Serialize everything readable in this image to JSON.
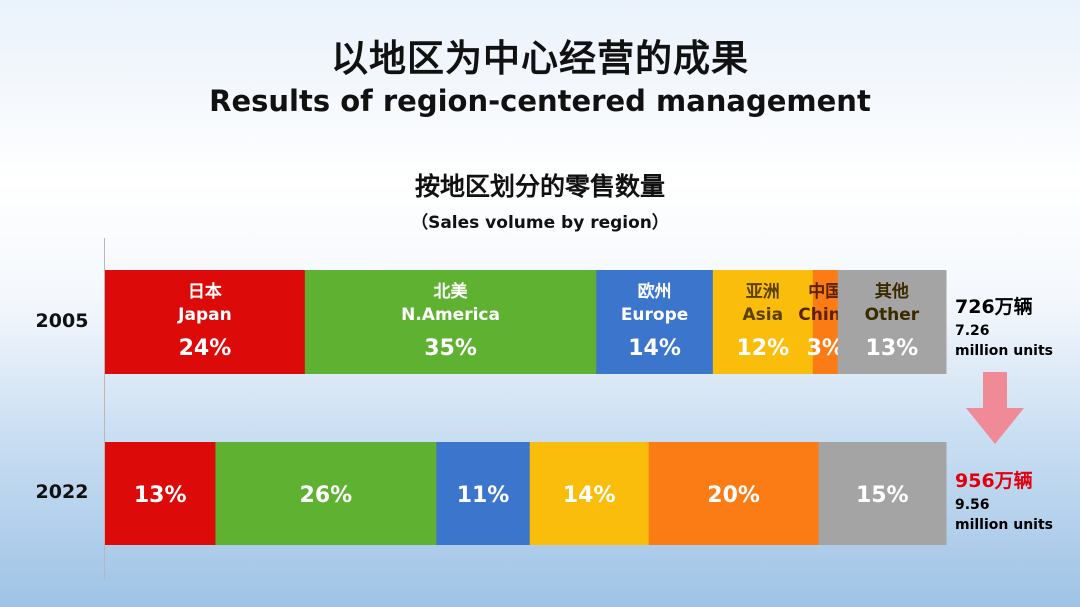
{
  "title_cn": "以地区为中心经营的成果",
  "title_en": "Results of region-centered management",
  "subtitle_cn": "按地区划分的零售数量",
  "subtitle_en": "（Sales volume by region）",
  "colors": {
    "Japan": "#dd0a0a",
    "N.America": "#5fb132",
    "Europe": "#3b76cc",
    "Asia": "#fbbd0b",
    "China": "#fb7c15",
    "Other": "#a4a4a4",
    "arrow": "#f08a96",
    "total_2022": "#e0000f"
  },
  "chart_data": {
    "type": "bar",
    "orientation": "horizontal-100%-stacked",
    "categories": [
      "2005",
      "2022"
    ],
    "series": [
      {
        "name": "Japan",
        "name_cn": "日本",
        "label": "Japan",
        "values": [
          24,
          13
        ]
      },
      {
        "name": "N.America",
        "name_cn": "北美",
        "label": "N.America",
        "values": [
          35,
          26
        ]
      },
      {
        "name": "Europe",
        "name_cn": "欧州",
        "label": "Europe",
        "values": [
          14,
          11
        ]
      },
      {
        "name": "Asia",
        "name_cn": "亚洲",
        "label": "Asia",
        "values": [
          12,
          14
        ]
      },
      {
        "name": "China",
        "name_cn": "中国",
        "label": "China",
        "values": [
          3,
          20
        ]
      },
      {
        "name": "Other",
        "name_cn": "其他",
        "label": "Other",
        "values": [
          13,
          15
        ]
      }
    ],
    "totals": [
      {
        "cn": "726万辆",
        "en_value": "7.26",
        "en_unit": "million units"
      },
      {
        "cn": "956万辆",
        "en_value": "9.56",
        "en_unit": "million units"
      }
    ]
  }
}
